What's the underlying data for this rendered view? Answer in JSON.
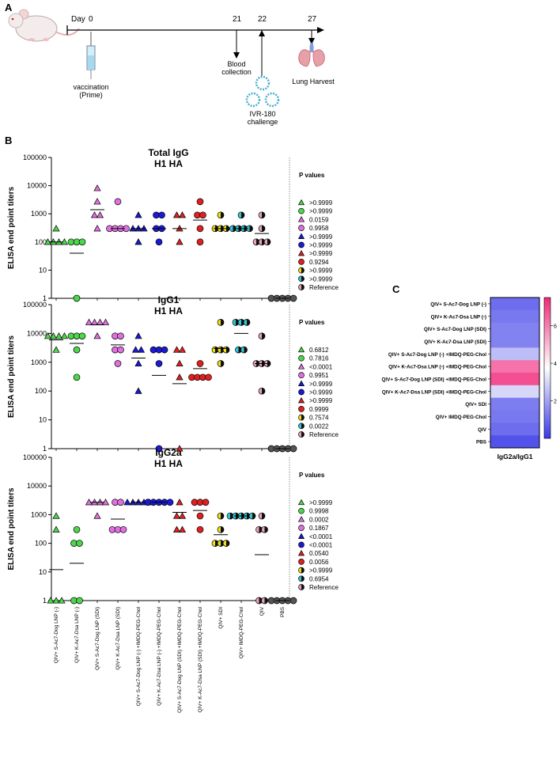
{
  "panels": {
    "a": "A",
    "b": "B",
    "c": "C"
  },
  "timeline": {
    "day_label": "Day",
    "days": [
      "0",
      "21",
      "22",
      "27"
    ],
    "vaccination": "vaccination",
    "prime": "(Prime)",
    "blood1": "Blood",
    "blood2": "collection",
    "ivr1": "IVR-180",
    "ivr2": "challenge",
    "harvest": "Lung Harvest"
  },
  "groups": [
    "QIV+ S-Ac7-Dog LNP (-)",
    "QIV+ K-Ac7-Dsa LNP (-)",
    "QIV+ S-Ac7-Dog LNP (SDI)",
    "QIV+ K-Ac7-Dsa LNP (SDI)",
    "QIV+ S-Ac7-Dog LNP (-) +IMDQ-PEG-Chol",
    "QIV+ K-Ac7-Dsa LNP (-) +IMDQ-PEG-Chol",
    "QIV+ S-Ac7-Dog LNP (SDI) +IMDQ-PEG-Chol",
    "QIV+ K-Ac7-Dsa LNP (SDI) +IMDQ-PEG-Chol",
    "QIV+ SDI",
    "QIV+ IMDQ-PEG-Chol",
    "QIV",
    "PBS"
  ],
  "styles": [
    {
      "shape": "triangle",
      "fill": "#4cd64c"
    },
    {
      "shape": "circle",
      "fill": "#4cd64c"
    },
    {
      "shape": "triangle",
      "fill": "#e070e0"
    },
    {
      "shape": "circle",
      "fill": "#e070e0"
    },
    {
      "shape": "triangle",
      "fill": "#1a1ad6"
    },
    {
      "shape": "circle",
      "fill": "#1a1ad6"
    },
    {
      "shape": "triangle",
      "fill": "#e02020"
    },
    {
      "shape": "circle",
      "fill": "#e02020"
    },
    {
      "shape": "half",
      "fill": "#f0e010"
    },
    {
      "shape": "half",
      "fill": "#30c8d8"
    },
    {
      "shape": "half",
      "fill": "#e8a0c0"
    },
    {
      "shape": "circle",
      "fill": "#555555"
    }
  ],
  "pvalues_title": "P values",
  "chart_data": [
    {
      "type": "scatter",
      "title": "Total IgG",
      "subtitle": "H1 HA",
      "ylabel": "ELISA end point titers",
      "yscale": "log",
      "ylim": [
        1,
        100000
      ],
      "ticks": [
        "1",
        "10",
        "100",
        "1000",
        "10000",
        "100000"
      ],
      "series": [
        {
          "values": [
            300,
            100,
            100,
            100,
            100
          ],
          "mean": 100
        },
        {
          "values": [
            100,
            100,
            100,
            1
          ],
          "mean": 40
        },
        {
          "values": [
            8100,
            2700,
            900,
            900,
            300
          ],
          "mean": 1400
        },
        {
          "values": [
            2700,
            300,
            300,
            300,
            300
          ],
          "mean": 300
        },
        {
          "values": [
            900,
            300,
            300,
            300,
            100
          ],
          "mean": 300
        },
        {
          "values": [
            900,
            300,
            300,
            900,
            100
          ],
          "mean": 300
        },
        {
          "values": [
            900,
            300,
            900,
            100
          ],
          "mean": 300
        },
        {
          "values": [
            2700,
            900,
            900,
            300,
            100
          ],
          "mean": 600
        },
        {
          "values": [
            900,
            300,
            300,
            300
          ],
          "mean": 300
        },
        {
          "values": [
            900,
            300,
            300,
            300,
            300
          ],
          "mean": 300
        },
        {
          "values": [
            900,
            300,
            100,
            100,
            100
          ],
          "mean": 200
        },
        {
          "values": [
            1,
            1,
            1,
            1,
            1
          ],
          "mean": 1
        }
      ],
      "pvalues": [
        ">0.9999",
        ">0.9999",
        "0.0159",
        "0.9958",
        ">0.9999",
        ">0.9999",
        ">0.9999",
        "0.9294",
        ">0.9999",
        ">0.9999",
        "Reference"
      ]
    },
    {
      "type": "scatter",
      "title": "IgG1",
      "subtitle": "H1 HA",
      "ylabel": "ELISA end point titers",
      "yscale": "log",
      "ylim": [
        1,
        100000
      ],
      "ticks": [
        "1",
        "10",
        "100",
        "1000",
        "10000",
        "100000"
      ],
      "series": [
        {
          "values": [
            8100,
            8100,
            8100,
            8100,
            2700
          ],
          "mean": 6000
        },
        {
          "values": [
            8100,
            8100,
            8100,
            2700,
            300
          ],
          "mean": 4500
        },
        {
          "values": [
            24300,
            24300,
            24300,
            24300,
            8100
          ],
          "mean": 20000
        },
        {
          "values": [
            8100,
            8100,
            2700,
            2700,
            900
          ],
          "mean": 4000
        },
        {
          "values": [
            8100,
            2700,
            2700,
            900,
            100
          ],
          "mean": 1400
        },
        {
          "values": [
            2700,
            2700,
            2700,
            900,
            1
          ],
          "mean": 350
        },
        {
          "values": [
            2700,
            2700,
            900,
            300,
            1
          ],
          "mean": 180
        },
        {
          "values": [
            900,
            300,
            300,
            300,
            300
          ],
          "mean": 600
        },
        {
          "values": [
            24300,
            2700,
            2700,
            2700,
            900
          ],
          "mean": 3000
        },
        {
          "values": [
            24300,
            24300,
            24300,
            2700,
            2700
          ],
          "mean": 10000
        },
        {
          "values": [
            8100,
            900,
            900,
            900,
            100
          ],
          "mean": 900
        },
        {
          "values": [
            1,
            1,
            1,
            1,
            1
          ],
          "mean": 1
        }
      ],
      "pvalues": [
        "0.6812",
        "0.7816",
        "<0.0001",
        "0.9951",
        ">0.9999",
        ">0.9999",
        ">0.9999",
        "0.9999",
        "0.7574",
        "0.0022",
        "Reference"
      ]
    },
    {
      "type": "scatter",
      "title": "IgG2a",
      "subtitle": "H1 HA",
      "ylabel": "ELISA end point titers",
      "yscale": "log",
      "ylim": [
        1,
        100000
      ],
      "ticks": [
        "1",
        "10",
        "100",
        "1000",
        "10000",
        "100000"
      ],
      "series": [
        {
          "values": [
            900,
            300,
            1,
            1,
            1
          ],
          "mean": 12
        },
        {
          "values": [
            300,
            100,
            100,
            1,
            1
          ],
          "mean": 20
        },
        {
          "values": [
            2700,
            2700,
            2700,
            2700,
            900
          ],
          "mean": 2700
        },
        {
          "values": [
            2700,
            2700,
            300,
            300,
            300
          ],
          "mean": 700
        },
        {
          "values": [
            2700,
            2700,
            2700,
            2700,
            2700
          ],
          "mean": 2700
        },
        {
          "values": [
            2700,
            2700,
            2700,
            2700,
            2700
          ],
          "mean": 2700
        },
        {
          "values": [
            2700,
            900,
            900,
            300,
            300
          ],
          "mean": 1200
        },
        {
          "values": [
            2700,
            2700,
            2700,
            900,
            300
          ],
          "mean": 1400
        },
        {
          "values": [
            900,
            300,
            100,
            100,
            100
          ],
          "mean": 200
        },
        {
          "values": [
            900,
            900,
            900,
            900,
            900
          ],
          "mean": 900
        },
        {
          "values": [
            900,
            300,
            300,
            1,
            1
          ],
          "mean": 40
        },
        {
          "values": [
            1,
            1,
            1,
            1,
            1
          ],
          "mean": 1
        }
      ],
      "pvalues": [
        ">0.9999",
        "0.9998",
        "0.0002",
        "0.1867",
        "<0.0001",
        "<0.0001",
        "0.0540",
        "0.0056",
        ">0.9999",
        "0.6954",
        "Reference"
      ]
    },
    {
      "type": "heatmap",
      "xlabel": "IgG2a/IgG1",
      "scale_min": 0,
      "scale_max": 7.5,
      "colorbar_ticks": [
        "2",
        "4",
        "6"
      ],
      "colorbar_tick_values": [
        2,
        4,
        6
      ],
      "values": [
        1.0,
        1.2,
        1.4,
        1.4,
        2.5,
        6.2,
        6.8,
        3.0,
        1.3,
        1.2,
        1.0,
        0.5
      ],
      "colors": {
        "low": "#3838e8",
        "mid": "#ffffff",
        "high": "#f0287a"
      }
    }
  ]
}
